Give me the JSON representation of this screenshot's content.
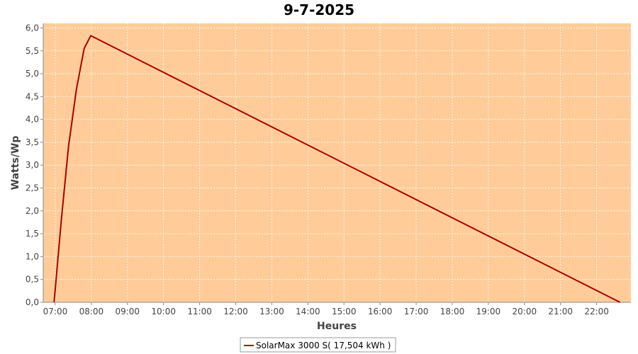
{
  "chart_data": {
    "type": "line",
    "title": "9-7-2025",
    "xlabel": "Heures",
    "ylabel": "Watts/Wp",
    "x_ticks": [
      "07:00",
      "08:00",
      "09:00",
      "10:00",
      "11:00",
      "12:00",
      "13:00",
      "14:00",
      "15:00",
      "16:00",
      "17:00",
      "18:00",
      "19:00",
      "20:00",
      "21:00",
      "22:00"
    ],
    "y_ticks": [
      "0,0",
      "0,5",
      "1,0",
      "1,5",
      "2,0",
      "2,5",
      "3,0",
      "3,5",
      "4,0",
      "4,5",
      "5,0",
      "5,5",
      "6,0"
    ],
    "xlim": [
      "06:40",
      "22:57"
    ],
    "ylim": [
      0,
      6.1
    ],
    "grid": true,
    "legend_position": "bottom",
    "series": [
      {
        "name": "SolarMax 3000 S( 17,504 kWh )",
        "color": "#aa0000",
        "x": [
          "06:58",
          "07:10",
          "07:22",
          "07:35",
          "07:48",
          "07:59",
          "22:39"
        ],
        "y": [
          0.0,
          1.8,
          3.4,
          4.65,
          5.55,
          5.83,
          0.0
        ]
      }
    ],
    "plot_background": "#ffcc99",
    "grid_color": "#ffffff"
  }
}
